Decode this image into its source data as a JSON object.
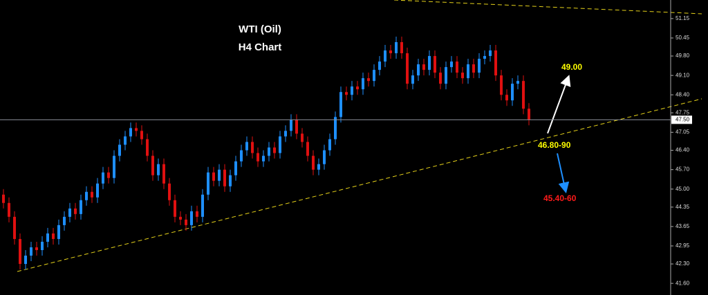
{
  "chart_data": {
    "type": "candlestick",
    "title": "WTI (Oil)",
    "subtitle": "H4 Chart",
    "up_color": "#1e8fff",
    "down_color": "#e01010",
    "ylim": [
      41.18,
      51.82
    ],
    "yticks": [
      51.15,
      50.45,
      {
        "value": 49.8,
        "label": "49.80"
      },
      {
        "value": 49.1,
        "label": "49.10"
      },
      {
        "value": 48.4,
        "label": "48.40"
      },
      47.75,
      47.05,
      {
        "value": 46.4,
        "label": "46.40"
      },
      {
        "value": 45.7,
        "label": "45.70"
      },
      {
        "value": 45,
        "label": "45.00"
      },
      44.35,
      43.65,
      42.95,
      {
        "value": 42.3,
        "label": "42.30"
      },
      {
        "value": 41.6,
        "label": "41.60"
      }
    ],
    "last_price": {
      "value": 47.5,
      "label": "47.50"
    },
    "annotations": [
      {
        "text": "49.00",
        "color": "#ffff00"
      },
      {
        "text": "46.80-90",
        "color": "#ffff00"
      },
      {
        "text": "45.40-60",
        "color": "#ff1a1a"
      }
    ],
    "open": [
      44.8,
      44.5,
      44.0,
      43.2,
      42.3,
      42.6,
      42.9,
      42.8,
      43.1,
      43.4,
      43.2,
      43.7,
      44.0,
      44.3,
      44.1,
      44.6,
      44.9,
      44.7,
      45.2,
      45.6,
      45.4,
      46.2,
      46.6,
      46.9,
      47.2,
      47.1,
      46.8,
      46.2,
      45.5,
      45.9,
      45.2,
      44.6,
      44.0,
      43.9,
      43.7,
      44.2,
      44.0,
      44.8,
      45.6,
      45.3,
      45.7,
      45.1,
      45.5,
      46.0,
      46.4,
      46.7,
      46.3,
      46.0,
      46.2,
      46.5,
      46.3,
      46.9,
      47.1,
      47.5,
      47.0,
      46.7,
      46.2,
      45.7,
      45.9,
      46.4,
      46.8,
      47.6,
      48.5,
      48.4,
      48.7,
      48.6,
      49.0,
      48.9,
      49.3,
      49.6,
      50.0,
      49.9,
      50.3,
      49.9,
      48.8,
      49.1,
      49.5,
      49.3,
      49.8,
      49.2,
      48.8,
      49.4,
      49.6,
      49.2,
      49.0,
      49.5,
      49.2,
      49.7,
      49.8,
      50.0,
      49.1,
      48.4,
      48.2,
      48.8,
      48.9,
      47.9
    ],
    "high": [
      45.0,
      44.7,
      44.2,
      43.4,
      42.8,
      43.1,
      43.1,
      43.3,
      43.6,
      43.6,
      43.9,
      44.2,
      44.5,
      44.5,
      44.8,
      45.1,
      45.1,
      45.4,
      45.8,
      45.8,
      46.4,
      46.8,
      47.1,
      47.4,
      47.4,
      47.3,
      47.0,
      46.4,
      46.1,
      46.1,
      45.4,
      44.8,
      44.2,
      44.1,
      44.4,
      44.4,
      45.0,
      45.8,
      45.8,
      45.9,
      45.9,
      45.7,
      46.2,
      46.6,
      46.9,
      46.9,
      46.5,
      46.4,
      46.7,
      46.7,
      47.1,
      47.3,
      47.7,
      47.7,
      47.2,
      46.9,
      46.4,
      46.1,
      46.6,
      47.0,
      47.8,
      48.7,
      48.7,
      48.9,
      48.9,
      49.2,
      49.2,
      49.5,
      49.8,
      50.2,
      50.2,
      50.5,
      50.5,
      50.1,
      49.3,
      49.7,
      49.7,
      50.0,
      50.0,
      49.4,
      49.6,
      49.8,
      49.8,
      49.4,
      49.7,
      49.7,
      49.9,
      50.0,
      50.2,
      50.2,
      49.3,
      48.6,
      49.0,
      49.1,
      49.1,
      48.1
    ],
    "low": [
      44.3,
      43.8,
      43.0,
      42.1,
      42.1,
      42.4,
      42.6,
      42.6,
      42.9,
      43.0,
      43.0,
      43.5,
      43.8,
      43.9,
      43.9,
      44.4,
      44.5,
      44.5,
      45.0,
      45.2,
      45.2,
      46.0,
      46.4,
      46.7,
      46.9,
      46.6,
      46.0,
      45.3,
      45.3,
      45.0,
      44.4,
      43.8,
      43.7,
      43.5,
      43.5,
      43.8,
      43.8,
      44.6,
      45.1,
      45.1,
      44.9,
      44.9,
      45.3,
      45.8,
      46.2,
      46.1,
      45.8,
      45.8,
      46.0,
      46.1,
      46.1,
      46.7,
      46.9,
      46.8,
      46.5,
      46.0,
      45.5,
      45.5,
      45.7,
      46.2,
      46.6,
      47.4,
      48.2,
      48.2,
      48.4,
      48.4,
      48.7,
      48.7,
      49.1,
      49.4,
      49.7,
      49.7,
      49.7,
      48.6,
      48.6,
      48.9,
      49.1,
      49.1,
      49.0,
      48.6,
      48.6,
      49.2,
      49.0,
      48.8,
      48.8,
      49.0,
      49.0,
      49.5,
      49.6,
      48.9,
      48.2,
      48.0,
      48.0,
      48.6,
      47.7,
      47.3
    ],
    "close": [
      44.5,
      44.0,
      43.2,
      42.3,
      42.6,
      42.9,
      42.8,
      43.1,
      43.4,
      43.2,
      43.7,
      44.0,
      44.3,
      44.1,
      44.6,
      44.9,
      44.7,
      45.2,
      45.6,
      45.4,
      46.2,
      46.6,
      46.9,
      47.2,
      47.1,
      46.8,
      46.2,
      45.5,
      45.9,
      45.2,
      44.6,
      44.0,
      43.9,
      43.7,
      44.2,
      44.0,
      44.8,
      45.6,
      45.3,
      45.7,
      45.1,
      45.5,
      46.0,
      46.4,
      46.7,
      46.3,
      46.0,
      46.2,
      46.5,
      46.3,
      46.9,
      47.1,
      47.5,
      47.0,
      46.7,
      46.2,
      45.7,
      45.9,
      46.4,
      46.8,
      47.6,
      48.5,
      48.4,
      48.7,
      48.6,
      49.0,
      48.9,
      49.3,
      49.6,
      50.0,
      49.9,
      50.3,
      49.9,
      48.8,
      49.1,
      49.5,
      49.3,
      49.8,
      49.2,
      48.8,
      49.4,
      49.6,
      49.2,
      49.0,
      49.5,
      49.2,
      49.7,
      49.8,
      50.0,
      49.1,
      48.4,
      48.2,
      48.8,
      48.9,
      47.9,
      47.5
    ]
  }
}
